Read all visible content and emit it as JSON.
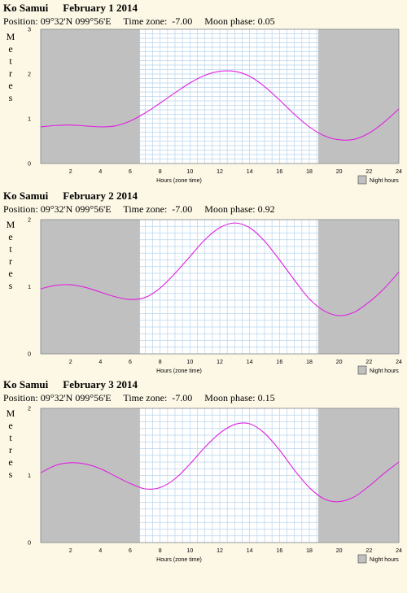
{
  "chart_data": [
    {
      "type": "line",
      "location": "Ko Samui",
      "date": "February 1 2014",
      "position_label": "Position:",
      "position": "09°32'N 099°56'E",
      "timezone_label": "Time zone:",
      "timezone": "-7.00",
      "moon_label": "Moon phase:",
      "moon_phase": "0.05",
      "ylabel": "Metres",
      "xlabel": "Hours (zone time)",
      "legend": "Night hours",
      "xlim": [
        0,
        24
      ],
      "ylim": [
        0,
        3
      ],
      "yticks": [
        "0",
        "1",
        "2",
        "3"
      ],
      "xticks": [
        "2",
        "4",
        "6",
        "8",
        "10",
        "12",
        "14",
        "16",
        "18",
        "20",
        "22",
        "24"
      ],
      "night": [
        [
          0,
          6.65
        ],
        [
          18.6,
          24
        ]
      ],
      "series": [
        {
          "x": [
            0,
            1,
            2,
            3,
            4,
            5,
            6,
            7,
            8,
            9,
            10,
            11,
            12,
            13,
            14,
            15,
            16,
            17,
            18,
            19,
            20,
            21,
            22,
            23,
            24
          ],
          "y": [
            0.82,
            0.85,
            0.86,
            0.84,
            0.82,
            0.84,
            0.95,
            1.13,
            1.35,
            1.58,
            1.8,
            1.97,
            2.06,
            2.06,
            1.95,
            1.72,
            1.42,
            1.1,
            0.82,
            0.62,
            0.53,
            0.54,
            0.68,
            0.92,
            1.22
          ]
        }
      ]
    },
    {
      "type": "line",
      "location": "Ko Samui",
      "date": "February 2 2014",
      "position_label": "Position:",
      "position": "09°32'N 099°56'E",
      "timezone_label": "Time zone:",
      "timezone": "-7.00",
      "moon_label": "Moon phase:",
      "moon_phase": "0.92",
      "ylabel": "Metres",
      "xlabel": "Hours (zone time)",
      "legend": "Night hours",
      "xlim": [
        0,
        24
      ],
      "ylim": [
        0,
        2
      ],
      "yticks": [
        "0",
        "1",
        "2"
      ],
      "xticks": [
        "2",
        "4",
        "6",
        "8",
        "10",
        "12",
        "14",
        "16",
        "18",
        "20",
        "22",
        "24"
      ],
      "night": [
        [
          0,
          6.65
        ],
        [
          18.6,
          24
        ]
      ],
      "series": [
        {
          "x": [
            0,
            1,
            2,
            3,
            4,
            5,
            6,
            7,
            8,
            9,
            10,
            11,
            12,
            13,
            14,
            15,
            16,
            17,
            18,
            19,
            20,
            21,
            22,
            23,
            24
          ],
          "y": [
            0.97,
            1.02,
            1.03,
            0.99,
            0.92,
            0.85,
            0.81,
            0.84,
            0.98,
            1.2,
            1.45,
            1.7,
            1.88,
            1.95,
            1.88,
            1.68,
            1.4,
            1.1,
            0.82,
            0.64,
            0.57,
            0.62,
            0.77,
            0.97,
            1.22
          ]
        }
      ]
    },
    {
      "type": "line",
      "location": "Ko Samui",
      "date": "February 3 2014",
      "position_label": "Position:",
      "position": "09°32'N 099°56'E",
      "timezone_label": "Time zone:",
      "timezone": "-7.00",
      "moon_label": "Moon phase:",
      "moon_phase": "0.15",
      "ylabel": "Metres",
      "xlabel": "Hours (zone time)",
      "legend": "Night hours",
      "xlim": [
        0,
        24
      ],
      "ylim": [
        0,
        2
      ],
      "yticks": [
        "0",
        "1",
        "2"
      ],
      "xticks": [
        "2",
        "4",
        "6",
        "8",
        "10",
        "12",
        "14",
        "16",
        "18",
        "20",
        "22",
        "24"
      ],
      "night": [
        [
          0,
          6.65
        ],
        [
          18.6,
          24
        ]
      ],
      "series": [
        {
          "x": [
            0,
            1,
            2,
            3,
            4,
            5,
            6,
            7,
            8,
            9,
            10,
            11,
            12,
            13,
            14,
            15,
            16,
            17,
            18,
            19,
            20,
            21,
            22,
            23,
            24
          ],
          "y": [
            1.04,
            1.15,
            1.19,
            1.17,
            1.1,
            0.99,
            0.88,
            0.8,
            0.82,
            0.95,
            1.17,
            1.42,
            1.63,
            1.76,
            1.77,
            1.63,
            1.38,
            1.08,
            0.82,
            0.65,
            0.61,
            0.68,
            0.84,
            1.03,
            1.2
          ]
        }
      ]
    }
  ]
}
